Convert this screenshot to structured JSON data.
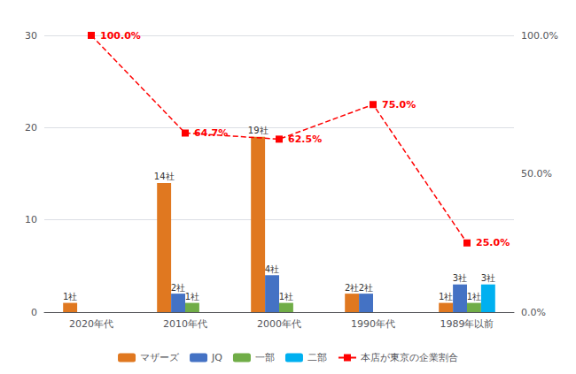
{
  "chart_data": {
    "type": "bar",
    "categories": [
      "2020年代",
      "2010年代",
      "2000年代",
      "1990年代",
      "1989年以前"
    ],
    "series": [
      {
        "name": "マザーズ",
        "color": "#E07820",
        "values": [
          1,
          14,
          19,
          2,
          1
        ],
        "value_labels": [
          "1社",
          "14社",
          "19社",
          "2社",
          "1社"
        ]
      },
      {
        "name": "JQ",
        "color": "#4472C4",
        "values": [
          0,
          2,
          4,
          2,
          3
        ],
        "value_labels": [
          null,
          "2社",
          "4社",
          "2社",
          "3社"
        ]
      },
      {
        "name": "一部",
        "color": "#70AD47",
        "values": [
          0,
          1,
          1,
          0,
          1
        ],
        "value_labels": [
          null,
          "1社",
          "1社",
          null,
          "1社"
        ]
      },
      {
        "name": "二部",
        "color": "#00B0F0",
        "values": [
          0,
          0,
          0,
          0,
          3
        ],
        "value_labels": [
          null,
          null,
          null,
          null,
          "3社"
        ]
      },
      {
        "name": "本店が東京の企業割合",
        "type": "line",
        "axis": "y2",
        "color": "#FF0000",
        "line_style": "dashed",
        "marker": "square",
        "values": [
          100.0,
          64.7,
          62.5,
          75.0,
          25.0
        ],
        "value_labels": [
          "100.0%",
          "64.7%",
          "62.5%",
          "75.0%",
          "25.0%"
        ]
      }
    ],
    "ylim": [
      0,
      30
    ],
    "yticks": [
      0,
      10,
      20,
      30
    ],
    "y2lim": [
      0,
      100
    ],
    "y2ticks": [
      {
        "value": 0,
        "label": "0.0%"
      },
      {
        "value": 50,
        "label": "50.0%"
      },
      {
        "value": 100,
        "label": "100.0%"
      }
    ],
    "grid": true,
    "legend": "bottom",
    "data_labels": true
  }
}
